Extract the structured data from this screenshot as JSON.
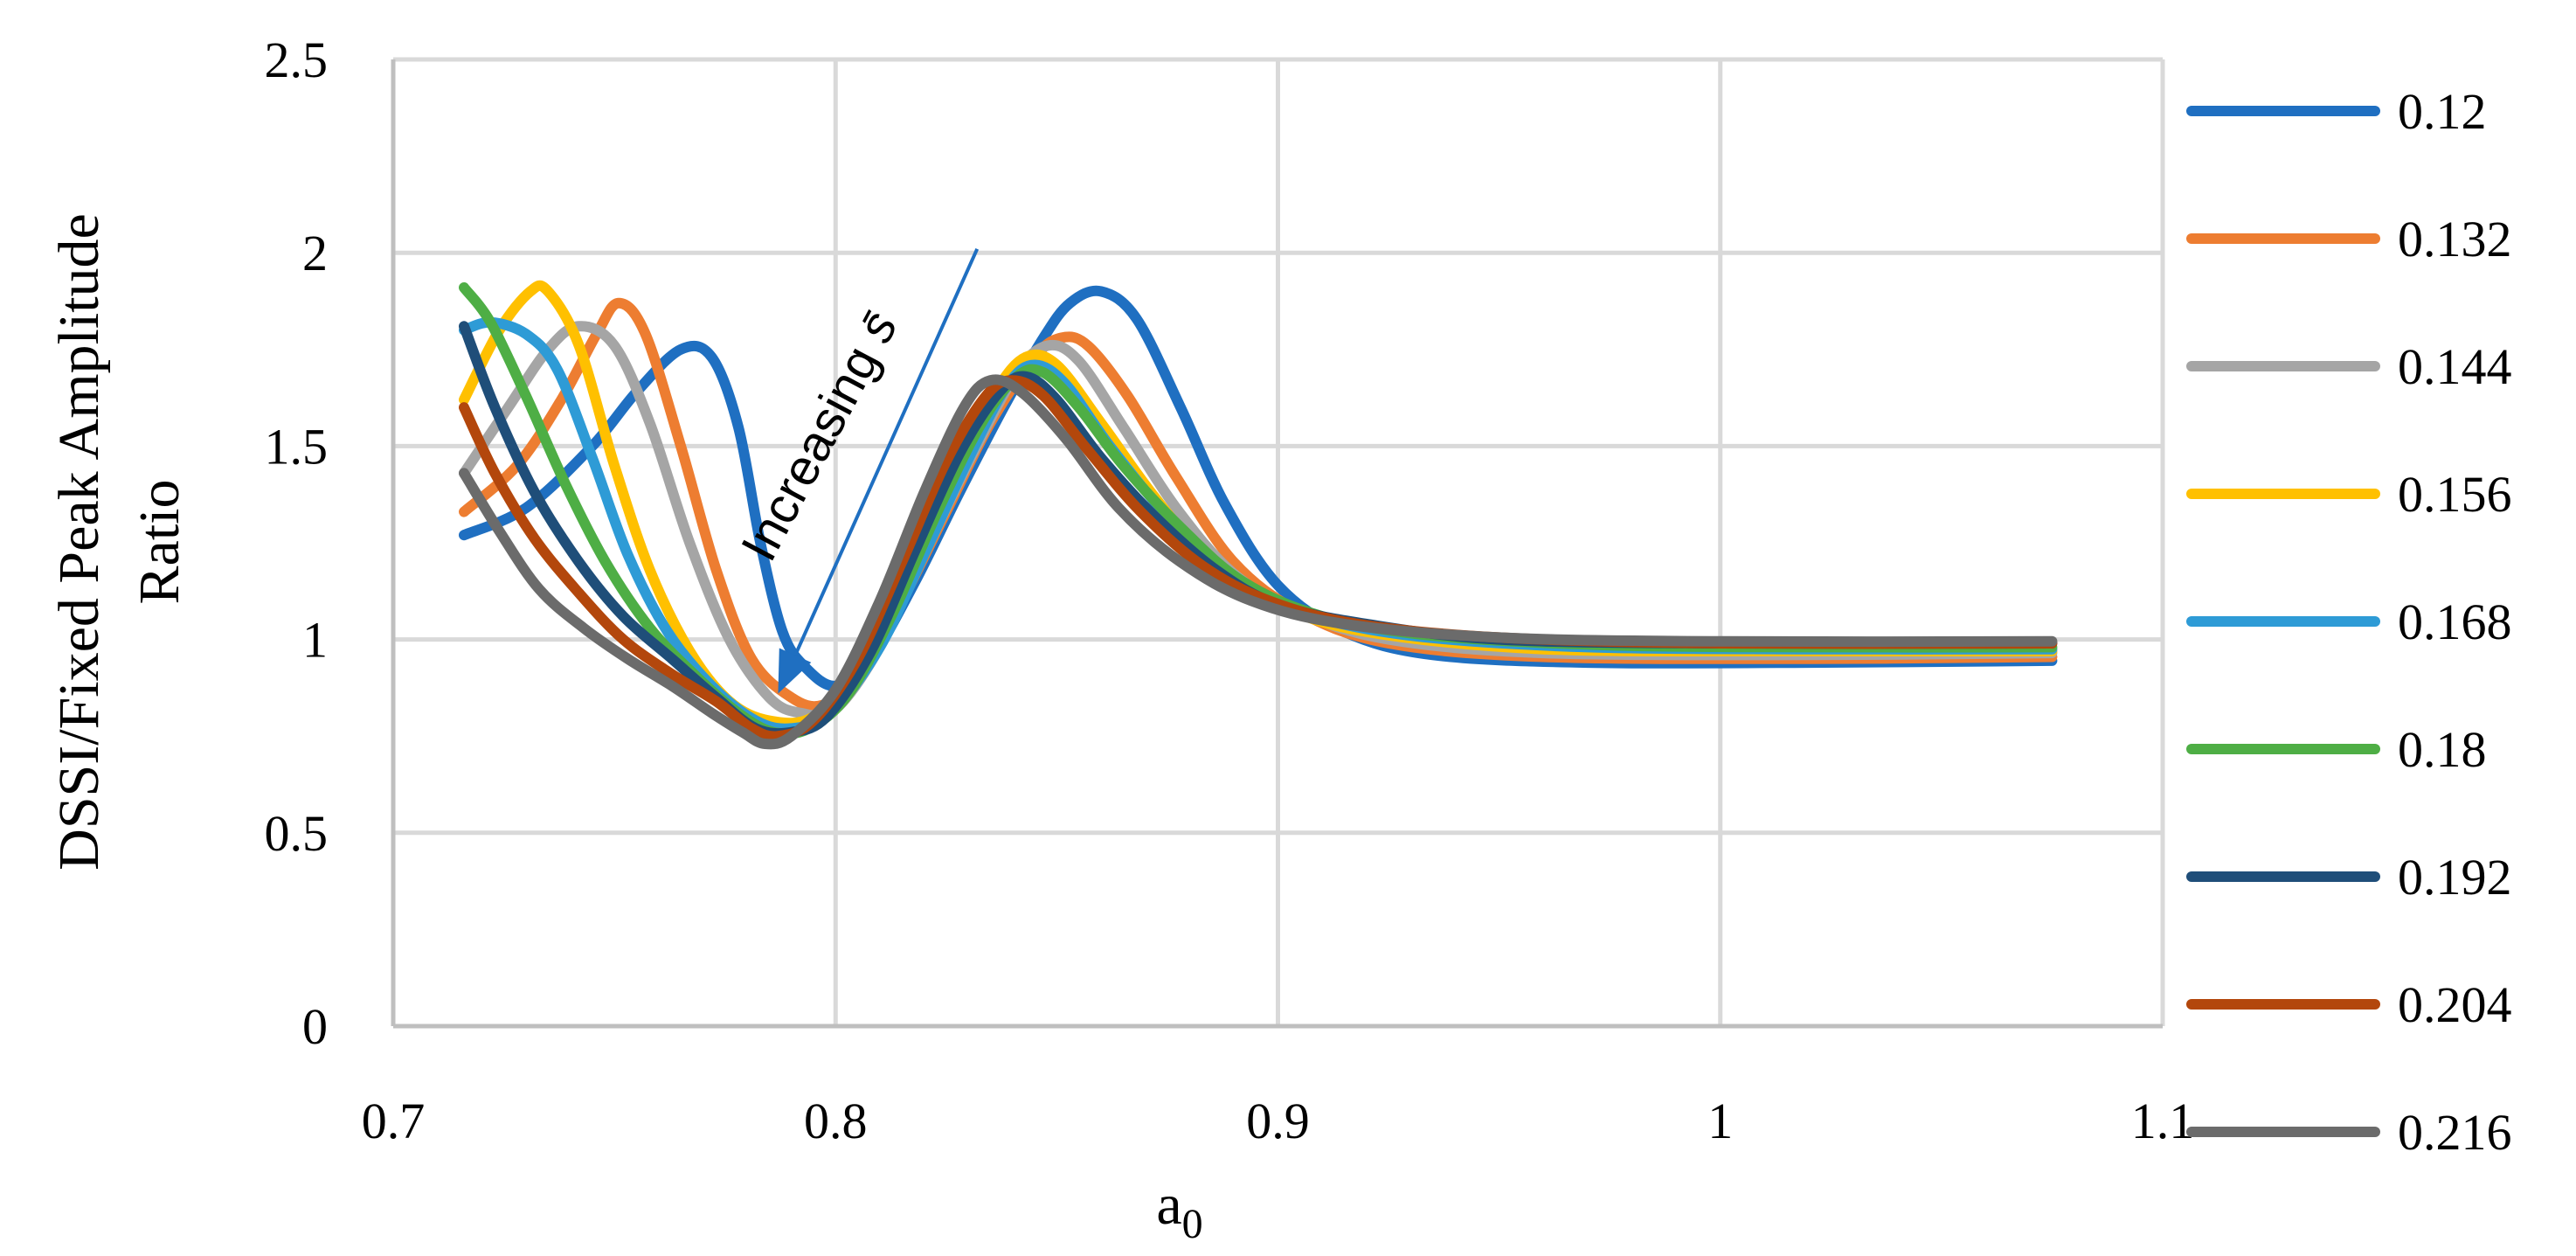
{
  "chart_data": {
    "type": "line",
    "title": "",
    "xlabel": "a",
    "xlabel_subscript": "0",
    "ylabel": "DSSI/Fixed Peak Amplitude Ratio",
    "ylabel_lines": [
      "DSSI/Fixed Peak Amplitude",
      "Ratio"
    ],
    "xlim": [
      0.7,
      1.1
    ],
    "ylim": [
      0,
      2.5
    ],
    "xticks": [
      0.7,
      0.8,
      0.9,
      1.0,
      1.1
    ],
    "xtick_labels": [
      "0.7",
      "0.8",
      "0.9",
      "1",
      "1.1"
    ],
    "yticks": [
      0,
      0.5,
      1,
      1.5,
      2,
      2.5
    ],
    "ytick_labels": [
      "0",
      "0.5",
      "1",
      "1.5",
      "2",
      "2.5"
    ],
    "grid": true,
    "legend_position": "right",
    "annotation": {
      "text": "Increasing",
      "symbol": "s̄",
      "arrow_from": [
        0.832,
        2.01
      ],
      "arrow_to": [
        0.787,
        0.86
      ]
    },
    "series": [
      {
        "name": "0.12",
        "color": "#1f6fc1",
        "points": [
          [
            0.716,
            1.27
          ],
          [
            0.73,
            1.34
          ],
          [
            0.745,
            1.5
          ],
          [
            0.755,
            1.64
          ],
          [
            0.765,
            1.75
          ],
          [
            0.772,
            1.73
          ],
          [
            0.778,
            1.55
          ],
          [
            0.783,
            1.25
          ],
          [
            0.788,
            1.02
          ],
          [
            0.793,
            0.93
          ],
          [
            0.8,
            0.88
          ],
          [
            0.808,
            0.95
          ],
          [
            0.818,
            1.15
          ],
          [
            0.828,
            1.38
          ],
          [
            0.838,
            1.6
          ],
          [
            0.847,
            1.78
          ],
          [
            0.853,
            1.87
          ],
          [
            0.86,
            1.9
          ],
          [
            0.868,
            1.83
          ],
          [
            0.878,
            1.6
          ],
          [
            0.888,
            1.35
          ],
          [
            0.9,
            1.14
          ],
          [
            0.915,
            1.02
          ],
          [
            0.935,
            0.96
          ],
          [
            0.97,
            0.94
          ],
          [
            1.02,
            0.94
          ],
          [
            1.075,
            0.945
          ]
        ]
      },
      {
        "name": "0.132",
        "color": "#ed7d31",
        "points": [
          [
            0.716,
            1.33
          ],
          [
            0.728,
            1.45
          ],
          [
            0.738,
            1.62
          ],
          [
            0.746,
            1.79
          ],
          [
            0.751,
            1.87
          ],
          [
            0.757,
            1.79
          ],
          [
            0.765,
            1.5
          ],
          [
            0.773,
            1.18
          ],
          [
            0.781,
            0.95
          ],
          [
            0.79,
            0.85
          ],
          [
            0.797,
            0.83
          ],
          [
            0.805,
            0.9
          ],
          [
            0.815,
            1.1
          ],
          [
            0.825,
            1.33
          ],
          [
            0.835,
            1.56
          ],
          [
            0.845,
            1.73
          ],
          [
            0.851,
            1.78
          ],
          [
            0.857,
            1.76
          ],
          [
            0.866,
            1.63
          ],
          [
            0.877,
            1.42
          ],
          [
            0.89,
            1.2
          ],
          [
            0.905,
            1.07
          ],
          [
            0.925,
            0.99
          ],
          [
            0.96,
            0.955
          ],
          [
            1.02,
            0.95
          ],
          [
            1.075,
            0.955
          ]
        ]
      },
      {
        "name": "0.144",
        "color": "#a5a5a5",
        "points": [
          [
            0.716,
            1.43
          ],
          [
            0.726,
            1.6
          ],
          [
            0.735,
            1.75
          ],
          [
            0.742,
            1.81
          ],
          [
            0.75,
            1.76
          ],
          [
            0.758,
            1.56
          ],
          [
            0.767,
            1.25
          ],
          [
            0.776,
            1.0
          ],
          [
            0.785,
            0.85
          ],
          [
            0.792,
            0.81
          ],
          [
            0.8,
            0.82
          ],
          [
            0.81,
            0.98
          ],
          [
            0.82,
            1.22
          ],
          [
            0.831,
            1.48
          ],
          [
            0.841,
            1.69
          ],
          [
            0.848,
            1.76
          ],
          [
            0.855,
            1.72
          ],
          [
            0.865,
            1.55
          ],
          [
            0.877,
            1.34
          ],
          [
            0.89,
            1.17
          ],
          [
            0.905,
            1.07
          ],
          [
            0.925,
            1.0
          ],
          [
            0.96,
            0.965
          ],
          [
            1.02,
            0.96
          ],
          [
            1.075,
            0.965
          ]
        ]
      },
      {
        "name": "0.156",
        "color": "#ffc000",
        "points": [
          [
            0.716,
            1.62
          ],
          [
            0.724,
            1.8
          ],
          [
            0.731,
            1.9
          ],
          [
            0.735,
            1.9
          ],
          [
            0.742,
            1.76
          ],
          [
            0.75,
            1.45
          ],
          [
            0.758,
            1.18
          ],
          [
            0.767,
            0.97
          ],
          [
            0.776,
            0.84
          ],
          [
            0.785,
            0.79
          ],
          [
            0.795,
            0.8
          ],
          [
            0.805,
            0.93
          ],
          [
            0.815,
            1.17
          ],
          [
            0.826,
            1.44
          ],
          [
            0.836,
            1.64
          ],
          [
            0.843,
            1.73
          ],
          [
            0.85,
            1.71
          ],
          [
            0.86,
            1.56
          ],
          [
            0.872,
            1.37
          ],
          [
            0.885,
            1.2
          ],
          [
            0.9,
            1.09
          ],
          [
            0.92,
            1.02
          ],
          [
            0.96,
            0.975
          ],
          [
            1.02,
            0.97
          ],
          [
            1.075,
            0.97
          ]
        ]
      },
      {
        "name": "0.168",
        "color": "#2e9bd6",
        "points": [
          [
            0.716,
            1.8
          ],
          [
            0.722,
            1.82
          ],
          [
            0.73,
            1.79
          ],
          [
            0.737,
            1.7
          ],
          [
            0.745,
            1.47
          ],
          [
            0.753,
            1.22
          ],
          [
            0.762,
            1.02
          ],
          [
            0.772,
            0.88
          ],
          [
            0.782,
            0.79
          ],
          [
            0.79,
            0.77
          ],
          [
            0.799,
            0.81
          ],
          [
            0.81,
            0.98
          ],
          [
            0.82,
            1.22
          ],
          [
            0.831,
            1.49
          ],
          [
            0.839,
            1.66
          ],
          [
            0.845,
            1.71
          ],
          [
            0.852,
            1.66
          ],
          [
            0.862,
            1.5
          ],
          [
            0.875,
            1.32
          ],
          [
            0.89,
            1.16
          ],
          [
            0.905,
            1.07
          ],
          [
            0.93,
            1.01
          ],
          [
            0.97,
            0.98
          ],
          [
            1.02,
            0.975
          ],
          [
            1.075,
            0.975
          ]
        ]
      },
      {
        "name": "0.18",
        "color": "#4eae45",
        "points": [
          [
            0.716,
            1.91
          ],
          [
            0.722,
            1.82
          ],
          [
            0.73,
            1.63
          ],
          [
            0.739,
            1.4
          ],
          [
            0.748,
            1.2
          ],
          [
            0.758,
            1.03
          ],
          [
            0.768,
            0.91
          ],
          [
            0.778,
            0.81
          ],
          [
            0.786,
            0.76
          ],
          [
            0.794,
            0.77
          ],
          [
            0.803,
            0.86
          ],
          [
            0.813,
            1.07
          ],
          [
            0.823,
            1.33
          ],
          [
            0.833,
            1.56
          ],
          [
            0.841,
            1.68
          ],
          [
            0.847,
            1.69
          ],
          [
            0.855,
            1.6
          ],
          [
            0.865,
            1.45
          ],
          [
            0.878,
            1.29
          ],
          [
            0.892,
            1.15
          ],
          [
            0.91,
            1.06
          ],
          [
            0.935,
            1.01
          ],
          [
            0.975,
            0.985
          ],
          [
            1.02,
            0.98
          ],
          [
            1.075,
            0.98
          ]
        ]
      },
      {
        "name": "0.192",
        "color": "#1f4e79",
        "points": [
          [
            0.716,
            1.81
          ],
          [
            0.723,
            1.6
          ],
          [
            0.732,
            1.38
          ],
          [
            0.742,
            1.2
          ],
          [
            0.752,
            1.06
          ],
          [
            0.763,
            0.95
          ],
          [
            0.773,
            0.85
          ],
          [
            0.782,
            0.77
          ],
          [
            0.79,
            0.76
          ],
          [
            0.798,
            0.8
          ],
          [
            0.808,
            0.97
          ],
          [
            0.818,
            1.23
          ],
          [
            0.828,
            1.48
          ],
          [
            0.837,
            1.64
          ],
          [
            0.843,
            1.68
          ],
          [
            0.85,
            1.62
          ],
          [
            0.86,
            1.47
          ],
          [
            0.872,
            1.32
          ],
          [
            0.886,
            1.18
          ],
          [
            0.9,
            1.09
          ],
          [
            0.92,
            1.04
          ],
          [
            0.95,
            1.0
          ],
          [
            1.0,
            0.99
          ],
          [
            1.075,
            0.99
          ]
        ]
      },
      {
        "name": "0.204",
        "color": "#b3470c",
        "points": [
          [
            0.716,
            1.6
          ],
          [
            0.723,
            1.43
          ],
          [
            0.732,
            1.26
          ],
          [
            0.742,
            1.12
          ],
          [
            0.752,
            1.0
          ],
          [
            0.763,
            0.91
          ],
          [
            0.773,
            0.84
          ],
          [
            0.781,
            0.77
          ],
          [
            0.787,
            0.75
          ],
          [
            0.795,
            0.79
          ],
          [
            0.805,
            0.95
          ],
          [
            0.815,
            1.2
          ],
          [
            0.825,
            1.46
          ],
          [
            0.834,
            1.63
          ],
          [
            0.84,
            1.67
          ],
          [
            0.847,
            1.63
          ],
          [
            0.857,
            1.49
          ],
          [
            0.869,
            1.33
          ],
          [
            0.883,
            1.19
          ],
          [
            0.898,
            1.1
          ],
          [
            0.918,
            1.04
          ],
          [
            0.95,
            1.005
          ],
          [
            1.0,
            0.99
          ],
          [
            1.075,
            0.99
          ]
        ]
      },
      {
        "name": "0.216",
        "color": "#6b6b6b",
        "points": [
          [
            0.716,
            1.43
          ],
          [
            0.724,
            1.28
          ],
          [
            0.733,
            1.13
          ],
          [
            0.743,
            1.03
          ],
          [
            0.753,
            0.95
          ],
          [
            0.763,
            0.88
          ],
          [
            0.772,
            0.81
          ],
          [
            0.779,
            0.76
          ],
          [
            0.784,
            0.73
          ],
          [
            0.79,
            0.75
          ],
          [
            0.8,
            0.87
          ],
          [
            0.81,
            1.1
          ],
          [
            0.82,
            1.38
          ],
          [
            0.829,
            1.6
          ],
          [
            0.835,
            1.67
          ],
          [
            0.842,
            1.64
          ],
          [
            0.852,
            1.52
          ],
          [
            0.864,
            1.34
          ],
          [
            0.878,
            1.2
          ],
          [
            0.894,
            1.1
          ],
          [
            0.915,
            1.04
          ],
          [
            0.95,
            1.005
          ],
          [
            1.0,
            0.995
          ],
          [
            1.075,
            0.995
          ]
        ]
      }
    ]
  }
}
